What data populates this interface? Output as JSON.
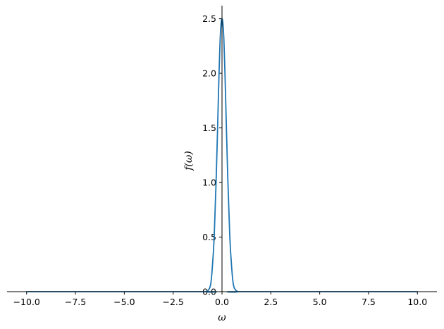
{
  "chart_data": {
    "type": "line",
    "title": "",
    "xlabel": "ω",
    "ylabel": "f(ω)",
    "xlim": [
      -11.0,
      11.0
    ],
    "ylim": [
      0.0,
      2.62
    ],
    "x_ticks": [
      -10.0,
      -7.5,
      -5.0,
      -2.5,
      0.0,
      2.5,
      5.0,
      7.5,
      10.0
    ],
    "x_tick_labels": [
      "−10.0",
      "−7.5",
      "−5.0",
      "−2.5",
      "0.0",
      "2.5",
      "5.0",
      "7.5",
      "10.0"
    ],
    "y_ticks": [
      0.0,
      0.5,
      1.0,
      1.5,
      2.0,
      2.5
    ],
    "y_tick_labels": [
      "0.0",
      "0.5",
      "1.0",
      "1.5",
      "2.0",
      "2.5"
    ],
    "grid": false,
    "legend": "none",
    "spines": "centered at origin",
    "line_color": "#1f77b4",
    "series": [
      {
        "x": [
          -10.0,
          -1.0,
          -0.8,
          -0.6,
          -0.5,
          -0.4,
          -0.3,
          -0.2,
          -0.15,
          -0.1,
          -0.05,
          0.0,
          0.05,
          0.1,
          0.15,
          0.2,
          0.3,
          0.4,
          0.5,
          0.6,
          0.8,
          1.0,
          10.0
        ],
        "values": [
          0.0,
          0.0,
          0.0,
          0.05,
          0.21,
          0.5,
          1.02,
          1.67,
          2.01,
          2.29,
          2.45,
          2.5,
          2.45,
          2.29,
          2.01,
          1.67,
          1.02,
          0.5,
          0.21,
          0.05,
          0.0,
          0.0,
          0.0
        ]
      }
    ]
  }
}
